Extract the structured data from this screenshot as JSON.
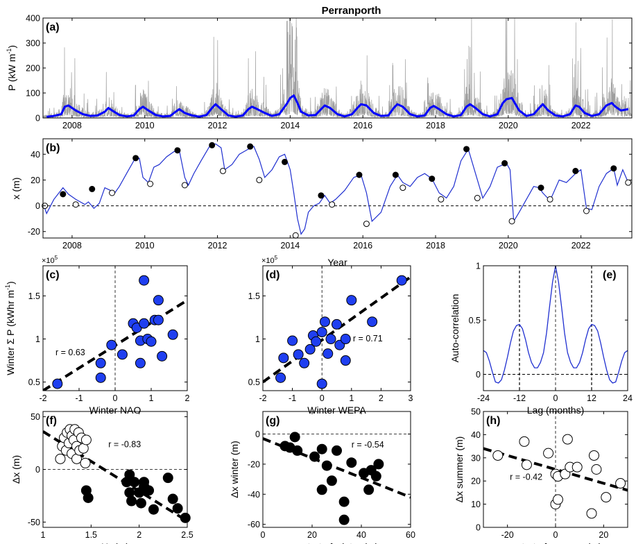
{
  "chart_data": [
    {
      "id": "a",
      "type": "line",
      "panel_label": "(a)",
      "title": "Perranporth",
      "ylabel": "P (kW m",
      "ylabel_sup": "-1",
      "ylabel_tail": ")",
      "xlim": [
        2007.2,
        2023.4
      ],
      "ylim": [
        0,
        400
      ],
      "xticks": [
        2008,
        2010,
        2012,
        2014,
        2016,
        2018,
        2020,
        2022
      ],
      "xticklabels": [
        "2008",
        "2010",
        "2012",
        "2014",
        "2016",
        "2018",
        "2020",
        "2022"
      ],
      "yticks": [
        0,
        100,
        200,
        300,
        400
      ],
      "yticklabels": [
        "0",
        "100",
        "200",
        "300",
        "400"
      ],
      "series": [
        {
          "style": "raw",
          "color": "#9e9e9e"
        },
        {
          "style": "smoothed",
          "color": "#0000ff",
          "x": [
            2007.3,
            2007.5,
            2007.7,
            2007.8,
            2007.9,
            2008.0,
            2008.1,
            2008.3,
            2008.5,
            2008.7,
            2008.9,
            2009.0,
            2009.1,
            2009.3,
            2009.5,
            2009.7,
            2009.85,
            2009.95,
            2010.1,
            2010.3,
            2010.5,
            2010.7,
            2010.85,
            2010.95,
            2011.1,
            2011.3,
            2011.5,
            2011.7,
            2011.85,
            2011.95,
            2012.1,
            2012.3,
            2012.5,
            2012.7,
            2012.85,
            2012.95,
            2013.1,
            2013.3,
            2013.5,
            2013.7,
            2013.9,
            2014.0,
            2014.1,
            2014.2,
            2014.3,
            2014.5,
            2014.7,
            2014.85,
            2014.95,
            2015.1,
            2015.3,
            2015.5,
            2015.7,
            2015.85,
            2015.95,
            2016.1,
            2016.3,
            2016.5,
            2016.7,
            2016.85,
            2016.95,
            2017.1,
            2017.3,
            2017.5,
            2017.7,
            2017.85,
            2017.95,
            2018.1,
            2018.3,
            2018.5,
            2018.7,
            2018.85,
            2018.95,
            2019.1,
            2019.3,
            2019.5,
            2019.7,
            2019.85,
            2019.95,
            2020.1,
            2020.3,
            2020.5,
            2020.7,
            2020.85,
            2020.95,
            2021.1,
            2021.3,
            2021.5,
            2021.7,
            2021.85,
            2021.95,
            2022.1,
            2022.3,
            2022.5,
            2022.7,
            2022.85,
            2022.95,
            2023.1,
            2023.3
          ],
          "y": [
            5,
            8,
            15,
            45,
            50,
            40,
            30,
            15,
            8,
            10,
            25,
            40,
            30,
            12,
            6,
            10,
            35,
            45,
            30,
            12,
            6,
            8,
            25,
            35,
            20,
            10,
            5,
            12,
            40,
            55,
            35,
            10,
            5,
            10,
            35,
            45,
            35,
            20,
            8,
            15,
            55,
            80,
            90,
            60,
            25,
            10,
            12,
            35,
            50,
            40,
            15,
            6,
            15,
            40,
            55,
            50,
            20,
            8,
            10,
            40,
            55,
            45,
            15,
            6,
            10,
            40,
            48,
            35,
            15,
            6,
            12,
            45,
            55,
            40,
            15,
            6,
            15,
            60,
            75,
            80,
            30,
            8,
            15,
            40,
            55,
            30,
            10,
            6,
            15,
            50,
            45,
            20,
            8,
            15,
            50,
            60,
            45,
            30,
            35
          ]
        }
      ]
    },
    {
      "id": "b",
      "type": "line",
      "panel_label": "(b)",
      "xlabel": "Year",
      "ylabel": "x (m)",
      "xlim": [
        2007.2,
        2023.4
      ],
      "ylim": [
        -25,
        52
      ],
      "xticks": [
        2008,
        2010,
        2012,
        2014,
        2016,
        2018,
        2020,
        2022
      ],
      "xticklabels": [
        "2008",
        "2010",
        "2012",
        "2014",
        "2016",
        "2018",
        "2020",
        "2022"
      ],
      "yticks": [
        -20,
        0,
        20,
        40
      ],
      "yticklabels": [
        "-20",
        "0",
        "20",
        "40"
      ],
      "series": [
        {
          "style": "line",
          "color": "#1f2fd0",
          "x": [
            2007.2,
            2007.3,
            2007.5,
            2007.75,
            2007.9,
            2008.1,
            2008.35,
            2008.45,
            2008.6,
            2008.75,
            2008.9,
            2009.05,
            2009.15,
            2009.3,
            2009.5,
            2009.7,
            2009.85,
            2009.95,
            2010.1,
            2010.25,
            2010.4,
            2010.6,
            2010.8,
            2010.95,
            2011.1,
            2011.2,
            2011.35,
            2011.55,
            2011.8,
            2011.95,
            2012.1,
            2012.2,
            2012.4,
            2012.6,
            2012.85,
            2013.0,
            2013.15,
            2013.3,
            2013.5,
            2013.7,
            2013.85,
            2014.0,
            2014.1,
            2014.2,
            2014.3,
            2014.4,
            2014.5,
            2014.65,
            2014.8,
            2014.95,
            2015.1,
            2015.25,
            2015.5,
            2015.75,
            2015.95,
            2016.1,
            2016.25,
            2016.5,
            2016.75,
            2016.95,
            2017.1,
            2017.3,
            2017.5,
            2017.7,
            2017.9,
            2018.1,
            2018.3,
            2018.5,
            2018.7,
            2018.9,
            2019.1,
            2019.3,
            2019.5,
            2019.7,
            2019.95,
            2020.05,
            2020.15,
            2020.3,
            2020.5,
            2020.7,
            2020.85,
            2020.95,
            2021.15,
            2021.4,
            2021.6,
            2021.85,
            2022.0,
            2022.15,
            2022.3,
            2022.5,
            2022.7,
            2022.9,
            2023.0,
            2023.15,
            2023.3
          ],
          "y": [
            2,
            -6,
            5,
            14,
            9,
            5,
            1,
            3,
            -2,
            2,
            14,
            12,
            9,
            15,
            25,
            35,
            37,
            22,
            18,
            30,
            32,
            38,
            42,
            43,
            22,
            16,
            25,
            35,
            47,
            48,
            45,
            28,
            32,
            40,
            44,
            46,
            36,
            22,
            28,
            38,
            40,
            28,
            10,
            -10,
            -22,
            -18,
            -5,
            0,
            2,
            8,
            2,
            5,
            12,
            22,
            24,
            10,
            -12,
            -5,
            15,
            24,
            18,
            15,
            22,
            25,
            21,
            10,
            6,
            15,
            35,
            44,
            25,
            6,
            15,
            30,
            33,
            28,
            -12,
            -5,
            5,
            15,
            14,
            10,
            4,
            20,
            18,
            25,
            28,
            -2,
            -3,
            15,
            25,
            29,
            16,
            28,
            18
          ]
        },
        {
          "style": "filled-markers",
          "color": "#000000",
          "x": [
            2007.75,
            2008.55,
            2009.75,
            2010.9,
            2011.85,
            2012.9,
            2013.85,
            2014.85,
            2015.9,
            2016.9,
            2017.9,
            2018.85,
            2019.9,
            2020.9,
            2021.85,
            2022.9
          ],
          "y": [
            9,
            13,
            37,
            43,
            47,
            46,
            34,
            8,
            24,
            24,
            21,
            44,
            33,
            14,
            27,
            29
          ]
        },
        {
          "style": "open-markers",
          "color": "#000000",
          "x": [
            2007.25,
            2008.1,
            2009.1,
            2010.15,
            2011.1,
            2012.15,
            2013.15,
            2014.15,
            2015.15,
            2016.1,
            2017.1,
            2018.15,
            2019.15,
            2020.1,
            2021.15,
            2022.15,
            2023.3
          ],
          "y": [
            0,
            1,
            10,
            17,
            16,
            27,
            20,
            -23,
            1,
            -14,
            14,
            5,
            6,
            -12,
            5,
            -4,
            18
          ]
        }
      ]
    },
    {
      "id": "c",
      "type": "scatter",
      "panel_label": "(c)",
      "xlabel": "Winter NAO",
      "ylabel": "Winter Σ P (kWhr m",
      "ylabel_sup": "-1",
      "ylabel_tail": ")",
      "multiplier_base": "×10",
      "multiplier_exp": "5",
      "annotation": "r = 0.63",
      "xlim": [
        -2,
        2
      ],
      "ylim": [
        0.4,
        1.85
      ],
      "xticks": [
        -2,
        -1,
        0,
        1,
        2
      ],
      "xticklabels": [
        "-2",
        "-1",
        "0",
        "1",
        "2"
      ],
      "yticks": [
        0.5,
        1,
        1.5
      ],
      "yticklabels": [
        "0.5",
        "1",
        "1.5"
      ],
      "points_x": [
        -1.6,
        -0.4,
        -0.4,
        -0.1,
        0.2,
        0.5,
        0.6,
        0.7,
        0.7,
        0.8,
        0.8,
        0.9,
        1.0,
        1.1,
        1.2,
        1.2,
        1.3,
        1.6
      ],
      "points_y": [
        0.48,
        0.55,
        0.72,
        0.93,
        0.82,
        1.18,
        1.13,
        0.98,
        0.72,
        1.18,
        1.68,
        1.0,
        0.97,
        1.22,
        1.45,
        1.22,
        0.8,
        1.05
      ],
      "fit": {
        "x": [
          -2,
          2
        ],
        "y": [
          0.4,
          1.45
        ]
      },
      "marker_color": "#1f3ff0"
    },
    {
      "id": "d",
      "type": "scatter",
      "panel_label": "(d)",
      "xlabel": "Winter WEPA",
      "multiplier_base": "×10",
      "multiplier_exp": "5",
      "annotation": "r = 0.71",
      "xlim": [
        -2,
        3
      ],
      "ylim": [
        0.4,
        1.85
      ],
      "xticks": [
        -2,
        -1,
        0,
        1,
        2,
        3
      ],
      "xticklabels": [
        "-2",
        "-1",
        "0",
        "1",
        "2",
        "3"
      ],
      "yticks": [
        0.5,
        1,
        1.5
      ],
      "yticklabels": [
        "0.5",
        "1",
        "1.5"
      ],
      "points_x": [
        -1.4,
        -1.3,
        -1.0,
        -0.8,
        -0.6,
        -0.4,
        -0.3,
        -0.2,
        0.0,
        0.0,
        0.1,
        0.2,
        0.3,
        0.5,
        0.6,
        0.8,
        0.8,
        1.0,
        1.7,
        2.7
      ],
      "points_y": [
        0.55,
        0.78,
        0.98,
        0.82,
        0.72,
        0.88,
        1.04,
        0.97,
        1.08,
        0.48,
        1.2,
        0.83,
        1.0,
        1.17,
        0.93,
        0.75,
        1.0,
        1.45,
        1.2,
        1.68
      ],
      "fit": {
        "x": [
          -2,
          3
        ],
        "y": [
          0.5,
          1.72
        ]
      },
      "marker_color": "#1f3ff0"
    },
    {
      "id": "e",
      "type": "line",
      "panel_label": "(e)",
      "xlabel": "Lag (months)",
      "ylabel": "Auto-correlation",
      "xlim": [
        -24,
        24
      ],
      "ylim": [
        -0.15,
        1
      ],
      "xticks": [
        -24,
        -12,
        0,
        12,
        24
      ],
      "xticklabels": [
        "-24",
        "-12",
        "0",
        "12",
        "24"
      ],
      "yticks": [
        0,
        0.5,
        1
      ],
      "yticklabels": [
        "0",
        "0.5",
        "1"
      ],
      "lag": [
        -24,
        -23,
        -22,
        -21,
        -20,
        -19,
        -18,
        -17,
        -16,
        -15,
        -14,
        -13,
        -12,
        -11,
        -10,
        -9,
        -8,
        -7,
        -6,
        -5,
        -4,
        -3,
        -2,
        -1,
        0,
        1,
        2,
        3,
        4,
        5,
        6,
        7,
        8,
        9,
        10,
        11,
        12,
        13,
        14,
        15,
        16,
        17,
        18,
        19,
        20,
        21,
        22,
        23,
        24
      ],
      "acf": [
        0.22,
        0.2,
        0.12,
        0.02,
        -0.07,
        -0.08,
        -0.05,
        0.04,
        0.16,
        0.29,
        0.4,
        0.45,
        0.46,
        0.42,
        0.32,
        0.2,
        0.11,
        0.06,
        0.06,
        0.11,
        0.2,
        0.38,
        0.62,
        0.85,
        1.0,
        0.85,
        0.62,
        0.38,
        0.2,
        0.11,
        0.06,
        0.06,
        0.11,
        0.2,
        0.32,
        0.42,
        0.46,
        0.45,
        0.4,
        0.29,
        0.16,
        0.04,
        -0.05,
        -0.08,
        -0.07,
        0.02,
        0.12,
        0.2,
        0.22
      ],
      "line_color": "#1f2fd0"
    },
    {
      "id": "f",
      "type": "scatter",
      "panel_label": "(f)",
      "xlabel": "H",
      "xlabel_sub": "s",
      "xlabel_tail": " (m)",
      "ylabel": "Δx (m)",
      "annotation": "r = -0.83",
      "xlim": [
        1,
        2.5
      ],
      "ylim": [
        -55,
        55
      ],
      "xticks": [
        1,
        1.5,
        2,
        2.5
      ],
      "xticklabels": [
        "1",
        "1.5",
        "2",
        "2.5"
      ],
      "yticks": [
        -50,
        0,
        50
      ],
      "yticklabels": [
        "-50",
        "0",
        "50"
      ],
      "open_x": [
        1.18,
        1.2,
        1.22,
        1.24,
        1.25,
        1.27,
        1.28,
        1.3,
        1.3,
        1.32,
        1.33,
        1.35,
        1.35,
        1.37,
        1.38,
        1.4,
        1.42,
        1.44,
        1.45
      ],
      "open_y": [
        10,
        22,
        30,
        18,
        35,
        25,
        38,
        32,
        15,
        28,
        38,
        22,
        10,
        35,
        18,
        30,
        20,
        6,
        28
      ],
      "filled_x": [
        1.45,
        1.47,
        1.87,
        1.9,
        1.9,
        1.92,
        1.95,
        2.0,
        2.02,
        2.05,
        2.05,
        2.1,
        2.15,
        2.3,
        2.35,
        2.4,
        2.48
      ],
      "filled_y": [
        -20,
        -27,
        -12,
        -5,
        -22,
        -30,
        -12,
        -22,
        -32,
        -12,
        -16,
        -20,
        -38,
        -8,
        -28,
        -37,
        -46
      ],
      "fit": {
        "x": [
          1,
          2.5
        ],
        "y": [
          36,
          -49
        ]
      }
    },
    {
      "id": "g",
      "type": "scatter",
      "panel_label": "(g)",
      "xlabel": "x start of winter (m)",
      "ylabel": "Δx winter (m)",
      "annotation": "r = -0.54",
      "xlim": [
        0,
        60
      ],
      "ylim": [
        -62,
        15
      ],
      "xticks": [
        0,
        20,
        40,
        60
      ],
      "xticklabels": [
        "0",
        "20",
        "40",
        "60"
      ],
      "yticks": [
        -60,
        -40,
        -20,
        0
      ],
      "yticklabels": [
        "-60",
        "-40",
        "-20",
        "0"
      ],
      "points_x": [
        9,
        11,
        13,
        14,
        21,
        24,
        24,
        26,
        28,
        30,
        33,
        33,
        36,
        41,
        43,
        44,
        46,
        47
      ],
      "points_y": [
        -8,
        -9,
        -2,
        -11,
        -15,
        -37,
        -10,
        -21,
        -31,
        -11,
        -45,
        -57,
        -19,
        -26,
        -37,
        -24,
        -28,
        -20
      ],
      "fit": {
        "x": [
          0,
          60
        ],
        "y": [
          -3,
          -42
        ]
      }
    },
    {
      "id": "h",
      "type": "scatter",
      "panel_label": "(h)",
      "xlabel": "x start of summer (m)",
      "ylabel": "Δx summer (m)",
      "annotation": "r = -0.42",
      "xlim": [
        -30,
        30
      ],
      "ylim": [
        0,
        50
      ],
      "xticks": [
        -20,
        0,
        20
      ],
      "xticklabels": [
        "-20",
        "0",
        "20"
      ],
      "yticks": [
        0,
        10,
        20,
        30,
        40,
        50
      ],
      "yticklabels": [
        "0",
        "10",
        "20",
        "30",
        "40",
        "50"
      ],
      "points_x": [
        -24,
        -13,
        -12,
        -3,
        0,
        0,
        1,
        1,
        4,
        5,
        6,
        9,
        15,
        16,
        17,
        21,
        27
      ],
      "points_y": [
        31,
        37,
        27,
        32,
        10,
        23,
        12,
        22,
        23,
        38,
        26,
        26,
        6,
        31,
        25,
        13,
        19
      ],
      "fit": {
        "x": [
          -30,
          30
        ],
        "y": [
          34,
          16
        ]
      }
    }
  ]
}
